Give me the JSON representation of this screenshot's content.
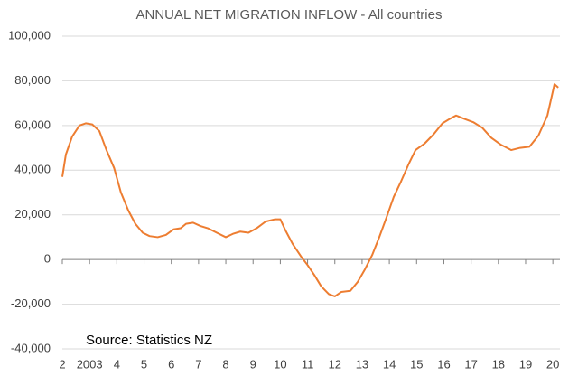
{
  "chart_data": {
    "type": "line",
    "title": "ANNUAL NET MIGRATION INFLOW - All countries",
    "annotation": "Source: Statistics NZ",
    "x": [
      2002.0,
      2002.13,
      2002.36,
      2002.63,
      2002.86,
      2003.1,
      2003.36,
      2003.62,
      2003.9,
      2004.15,
      2004.42,
      2004.68,
      2004.95,
      2005.2,
      2005.5,
      2005.8,
      2006.08,
      2006.34,
      2006.54,
      2006.8,
      2007.07,
      2007.34,
      2007.67,
      2008.0,
      2008.26,
      2008.53,
      2008.83,
      2009.13,
      2009.46,
      2009.79,
      2010.0,
      2010.19,
      2010.45,
      2010.78,
      2011.0,
      2011.25,
      2011.5,
      2011.78,
      2012.0,
      2012.24,
      2012.57,
      2012.84,
      2013.1,
      2013.37,
      2013.63,
      2013.9,
      2014.16,
      2014.43,
      2014.7,
      2014.96,
      2015.3,
      2015.62,
      2015.95,
      2016.22,
      2016.45,
      2016.75,
      2017.08,
      2017.41,
      2017.74,
      2018.08,
      2018.47,
      2018.8,
      2019.14,
      2019.47,
      2019.8,
      2020.06,
      2020.2
    ],
    "series": [
      {
        "name": "Net migration",
        "color": "#ed7d31",
        "values": [
          37000,
          47000,
          55000,
          60000,
          61000,
          60500,
          57500,
          49000,
          41000,
          30000,
          22000,
          16000,
          12000,
          10500,
          10000,
          11000,
          13500,
          14000,
          16000,
          16500,
          15000,
          14000,
          12000,
          10000,
          11500,
          12500,
          12000,
          14000,
          17000,
          18000,
          18000,
          13000,
          7000,
          1000,
          -2500,
          -7000,
          -12000,
          -15500,
          -16500,
          -14500,
          -14000,
          -10000,
          -4500,
          2000,
          10000,
          19000,
          28000,
          35000,
          42500,
          49000,
          52000,
          56000,
          61000,
          63000,
          64500,
          63000,
          61500,
          59000,
          54500,
          51500,
          49000,
          50000,
          50500,
          55500,
          64500,
          78500,
          77000
        ]
      }
    ],
    "xlim": [
      2002,
      2020.26
    ],
    "xticks": [
      {
        "value": 2002,
        "label": "2"
      },
      {
        "value": 2003,
        "label": "2003"
      },
      {
        "value": 2004,
        "label": "4"
      },
      {
        "value": 2005,
        "label": "5"
      },
      {
        "value": 2006,
        "label": "6"
      },
      {
        "value": 2007,
        "label": "7"
      },
      {
        "value": 2008,
        "label": "8"
      },
      {
        "value": 2009,
        "label": "9"
      },
      {
        "value": 2010,
        "label": "10"
      },
      {
        "value": 2011,
        "label": "11"
      },
      {
        "value": 2012,
        "label": "12"
      },
      {
        "value": 2013,
        "label": "13"
      },
      {
        "value": 2014,
        "label": "14"
      },
      {
        "value": 2015,
        "label": "15"
      },
      {
        "value": 2016,
        "label": "16"
      },
      {
        "value": 2017,
        "label": "17"
      },
      {
        "value": 2018,
        "label": "18"
      },
      {
        "value": 2019,
        "label": "19"
      },
      {
        "value": 2020,
        "label": "20"
      }
    ],
    "ylim": [
      -40000,
      100000
    ],
    "yticks": [
      {
        "value": -40000,
        "label": "-40,000"
      },
      {
        "value": -20000,
        "label": "-20,000"
      },
      0,
      {
        "value": 20000,
        "label": "20,000"
      },
      {
        "value": 40000,
        "label": "40,000"
      },
      {
        "value": 60000,
        "label": "60,000"
      },
      {
        "value": 80000,
        "label": "80,000"
      },
      {
        "value": 100000,
        "label": "100,000"
      }
    ],
    "grid": true
  }
}
